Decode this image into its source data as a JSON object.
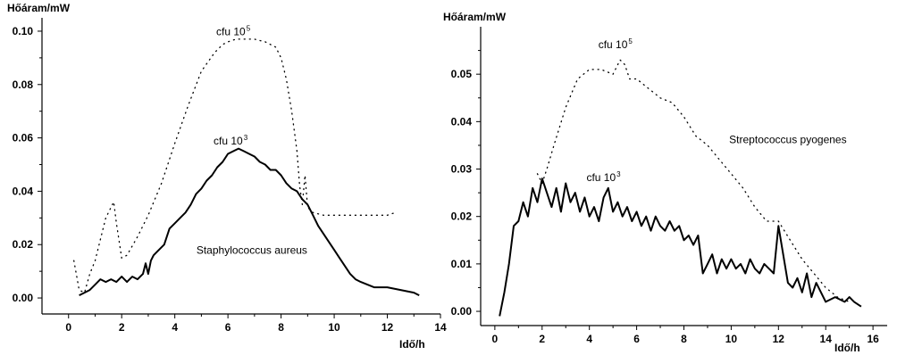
{
  "chart_data": [
    {
      "type": "line",
      "ylabel": "Hőáram/mW",
      "xlabel": "Idő/h",
      "xlim": [
        -1,
        14
      ],
      "ylim": [
        -0.006,
        0.105
      ],
      "xticks": [
        0,
        2,
        4,
        6,
        8,
        10,
        12,
        14
      ],
      "xtick_labels": [
        "0",
        "2",
        "4",
        "6",
        "8",
        "10",
        "12",
        "14"
      ],
      "yticks": [
        0.0,
        0.02,
        0.04,
        0.06,
        0.08,
        0.1
      ],
      "ytick_labels": [
        "0.00",
        "0.02",
        "0.04",
        "0.06",
        "0.08",
        "0.10"
      ],
      "grid": false,
      "annotations": [
        {
          "text": "cfu 10",
          "sup": "5",
          "x": 6.2,
          "y": 0.0985
        },
        {
          "text": "cfu 10",
          "sup": "3",
          "x": 6.1,
          "y": 0.0575
        },
        {
          "text": "Staphylococcus aureus",
          "x": 6.9,
          "y": 0.0165
        }
      ],
      "series": [
        {
          "style": "dotted",
          "x": [
            0.2,
            0.4,
            0.6,
            0.8,
            1.0,
            1.2,
            1.4,
            1.6,
            1.7,
            1.8,
            2.0,
            2.2,
            2.6,
            3.0,
            3.5,
            4.0,
            4.5,
            5.0,
            5.5,
            5.8,
            6.0,
            6.3,
            6.6,
            7.0,
            7.4,
            7.8,
            8.0,
            8.2,
            8.4,
            8.6,
            8.7,
            8.8,
            8.9,
            9.0,
            9.2,
            9.6,
            10.0,
            11.0,
            12.0,
            12.3
          ],
          "y": [
            0.014,
            0.003,
            0.002,
            0.009,
            0.014,
            0.022,
            0.03,
            0.034,
            0.036,
            0.028,
            0.015,
            0.016,
            0.023,
            0.031,
            0.043,
            0.058,
            0.072,
            0.085,
            0.092,
            0.095,
            0.096,
            0.097,
            0.097,
            0.097,
            0.096,
            0.094,
            0.09,
            0.082,
            0.07,
            0.055,
            0.042,
            0.035,
            0.046,
            0.034,
            0.032,
            0.031,
            0.031,
            0.031,
            0.031,
            0.032
          ]
        },
        {
          "style": "solid",
          "x": [
            0.4,
            0.6,
            0.8,
            1.0,
            1.2,
            1.4,
            1.6,
            1.8,
            2.0,
            2.2,
            2.4,
            2.6,
            2.8,
            2.9,
            3.0,
            3.1,
            3.2,
            3.4,
            3.6,
            3.8,
            4.0,
            4.2,
            4.4,
            4.6,
            4.8,
            5.0,
            5.2,
            5.4,
            5.6,
            5.8,
            6.0,
            6.2,
            6.4,
            6.6,
            6.8,
            7.0,
            7.2,
            7.4,
            7.6,
            7.8,
            8.0,
            8.2,
            8.4,
            8.6,
            8.8,
            9.0,
            9.2,
            9.4,
            9.6,
            9.8,
            10.0,
            10.2,
            10.4,
            10.6,
            10.8,
            11.0,
            11.5,
            12.0,
            12.5,
            13.0,
            13.2
          ],
          "y": [
            0.001,
            0.002,
            0.003,
            0.005,
            0.007,
            0.006,
            0.007,
            0.006,
            0.008,
            0.006,
            0.008,
            0.007,
            0.009,
            0.013,
            0.009,
            0.014,
            0.016,
            0.018,
            0.02,
            0.026,
            0.028,
            0.03,
            0.032,
            0.035,
            0.039,
            0.041,
            0.044,
            0.046,
            0.049,
            0.051,
            0.054,
            0.055,
            0.056,
            0.055,
            0.054,
            0.053,
            0.051,
            0.05,
            0.048,
            0.048,
            0.046,
            0.043,
            0.041,
            0.04,
            0.037,
            0.035,
            0.031,
            0.027,
            0.024,
            0.021,
            0.018,
            0.015,
            0.012,
            0.009,
            0.007,
            0.006,
            0.004,
            0.004,
            0.003,
            0.002,
            0.001
          ]
        }
      ]
    },
    {
      "type": "line",
      "ylabel": "Hőáram/mW",
      "xlabel": "Idő/h",
      "xlim": [
        -0.6,
        16.6
      ],
      "ylim": [
        -0.003,
        0.06
      ],
      "xticks": [
        0,
        2,
        4,
        6,
        8,
        10,
        12,
        14,
        16
      ],
      "xtick_labels": [
        "0",
        "2",
        "4",
        "6",
        "8",
        "10",
        "12",
        "14",
        "16"
      ],
      "yticks": [
        0.0,
        0.01,
        0.02,
        0.03,
        0.04,
        0.05
      ],
      "ytick_labels": [
        "0.00",
        "0.01",
        "0.02",
        "0.03",
        "0.04",
        "0.05"
      ],
      "grid": false,
      "annotations": [
        {
          "text": "cfu 10",
          "sup": "5",
          "x": 5.1,
          "y": 0.0555
        },
        {
          "text": "cfu 10",
          "sup": "3",
          "x": 4.6,
          "y": 0.0275
        },
        {
          "text": "Streptococcus pyogenes",
          "x": 12.4,
          "y": 0.0355
        }
      ],
      "series": [
        {
          "style": "dotted",
          "x": [
            1.8,
            2.0,
            2.2,
            2.5,
            3.0,
            3.5,
            4.0,
            4.5,
            5.0,
            5.3,
            5.5,
            5.7,
            6.0,
            6.5,
            7.0,
            7.5,
            8.0,
            8.5,
            9.0,
            9.5,
            10.0,
            10.5,
            11.0,
            11.5,
            12.0,
            12.5,
            13.0,
            13.5,
            14.0,
            14.5,
            15.0
          ],
          "y": [
            0.029,
            0.027,
            0.03,
            0.035,
            0.043,
            0.049,
            0.051,
            0.051,
            0.05,
            0.053,
            0.052,
            0.049,
            0.049,
            0.047,
            0.045,
            0.044,
            0.041,
            0.037,
            0.035,
            0.032,
            0.029,
            0.026,
            0.022,
            0.019,
            0.019,
            0.015,
            0.011,
            0.008,
            0.005,
            0.003,
            0.002
          ]
        },
        {
          "style": "solid",
          "x": [
            0.2,
            0.4,
            0.6,
            0.8,
            1.0,
            1.2,
            1.4,
            1.6,
            1.8,
            2.0,
            2.2,
            2.4,
            2.6,
            2.8,
            3.0,
            3.2,
            3.4,
            3.6,
            3.8,
            4.0,
            4.2,
            4.4,
            4.6,
            4.8,
            5.0,
            5.2,
            5.4,
            5.6,
            5.8,
            6.0,
            6.2,
            6.4,
            6.6,
            6.8,
            7.0,
            7.2,
            7.4,
            7.6,
            7.8,
            8.0,
            8.2,
            8.4,
            8.6,
            8.8,
            9.0,
            9.2,
            9.4,
            9.6,
            9.8,
            10.0,
            10.2,
            10.4,
            10.6,
            10.8,
            11.0,
            11.2,
            11.4,
            11.6,
            11.8,
            12.0,
            12.2,
            12.4,
            12.6,
            12.8,
            13.0,
            13.2,
            13.4,
            13.6,
            14.0,
            14.4,
            14.8,
            15.0,
            15.2,
            15.5
          ],
          "y": [
            -0.001,
            0.004,
            0.01,
            0.018,
            0.019,
            0.023,
            0.02,
            0.026,
            0.023,
            0.028,
            0.025,
            0.022,
            0.026,
            0.021,
            0.027,
            0.023,
            0.025,
            0.021,
            0.024,
            0.02,
            0.022,
            0.019,
            0.024,
            0.026,
            0.021,
            0.023,
            0.02,
            0.022,
            0.019,
            0.021,
            0.018,
            0.02,
            0.017,
            0.02,
            0.018,
            0.017,
            0.019,
            0.017,
            0.018,
            0.015,
            0.016,
            0.014,
            0.016,
            0.008,
            0.01,
            0.012,
            0.008,
            0.011,
            0.009,
            0.011,
            0.009,
            0.01,
            0.008,
            0.011,
            0.009,
            0.008,
            0.01,
            0.009,
            0.008,
            0.018,
            0.012,
            0.006,
            0.005,
            0.007,
            0.004,
            0.008,
            0.003,
            0.006,
            0.002,
            0.003,
            0.002,
            0.003,
            0.002,
            0.001
          ]
        }
      ]
    }
  ]
}
